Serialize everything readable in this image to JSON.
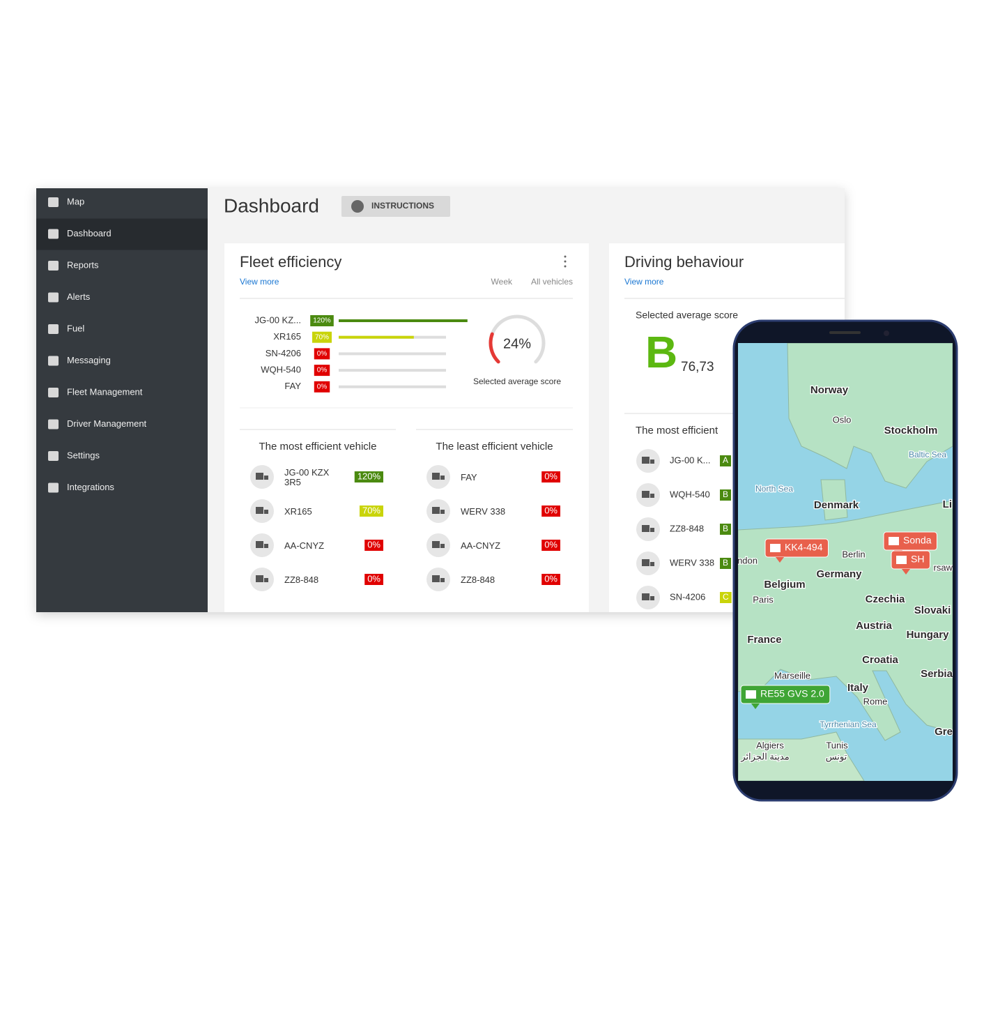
{
  "sidebar": {
    "items": [
      "Map",
      "Dashboard",
      "Reports",
      "Alerts",
      "Fuel",
      "Messaging",
      "Fleet Management",
      "Driver Management",
      "Settings",
      "Integrations"
    ]
  },
  "header": {
    "title": "Dashboard",
    "button": "INSTRUCTIONS"
  },
  "fleet_efficiency": {
    "title": "Fleet efficiency",
    "link": "View more",
    "period": "Week",
    "filter": "All vehicles",
    "bars": [
      {
        "name": "JG-00 KZ...",
        "value": 120,
        "label": "120%",
        "color": "#4b8a10"
      },
      {
        "name": "XR165",
        "value": 70,
        "label": "70%",
        "color": "#c9d40a"
      },
      {
        "name": "SN-4206",
        "value": 0,
        "label": "0%",
        "color": "#e00000"
      },
      {
        "name": "WQH-540",
        "value": 0,
        "label": "0%",
        "color": "#e00000"
      },
      {
        "name": "FAY",
        "value": 0,
        "label": "0%",
        "color": "#e00000"
      }
    ],
    "gauge": {
      "value": 24,
      "label": "24%",
      "caption": "Selected average score",
      "color": "#e53935"
    },
    "most_efficient": {
      "title": "The most efficient vehicle",
      "rows": [
        {
          "name": "JG-00 KZX 3R5",
          "value": "120%",
          "color": "#4b8a10"
        },
        {
          "name": "XR165",
          "value": "70%",
          "color": "#c9d40a"
        },
        {
          "name": "AA-CNYZ",
          "value": "0%",
          "color": "#e00000"
        },
        {
          "name": "ZZ8-848",
          "value": "0%",
          "color": "#e00000"
        }
      ]
    },
    "least_efficient": {
      "title": "The least efficient vehicle",
      "rows": [
        {
          "name": "FAY",
          "value": "0%",
          "color": "#e00000"
        },
        {
          "name": "WERV 338",
          "value": "0%",
          "color": "#e00000"
        },
        {
          "name": "AA-CNYZ",
          "value": "0%",
          "color": "#e00000"
        },
        {
          "name": "ZZ8-848",
          "value": "0%",
          "color": "#e00000"
        }
      ]
    }
  },
  "driving_behaviour": {
    "title": "Driving behaviour",
    "link": "View more",
    "score_title": "Selected average score",
    "grade": "B",
    "score": "76,73",
    "most_efficient": {
      "title": "The most efficient",
      "rows": [
        {
          "name": "JG-00 K...",
          "grade": "A",
          "color": "#4b8a10"
        },
        {
          "name": "WQH-540",
          "grade": "B",
          "color": "#4b8a10"
        },
        {
          "name": "ZZ8-848",
          "grade": "B",
          "color": "#4b8a10"
        },
        {
          "name": "WERV 338",
          "grade": "B",
          "color": "#4b8a10"
        },
        {
          "name": "SN-4206",
          "grade": "C",
          "color": "#c9d40a"
        }
      ]
    }
  },
  "map": {
    "labels": [
      "Norway",
      "Oslo",
      "Stockholm",
      "Baltic Sea",
      "North Sea",
      "Denmark",
      "Li",
      "ndon",
      "Berlin",
      "rsaw",
      "Germany",
      "Belgium",
      "Paris",
      "Czechia",
      "Slovaki",
      "France",
      "Austria",
      "Hungary",
      "Croatia",
      "Serbia",
      "Marseille",
      "Italy",
      "Rome",
      "Tyrrhenian Sea",
      "Gre",
      "Algiers",
      "مدينة الجزائر",
      "Tunis",
      "تونس"
    ],
    "markers": [
      {
        "name": "KK4-494",
        "color": "#e8604c"
      },
      {
        "name": "Sonda",
        "color": "#e8604c"
      },
      {
        "name": "SH",
        "color": "#e8604c"
      },
      {
        "name": "RE55 GVS 2.0",
        "color": "#3fa535"
      }
    ]
  }
}
